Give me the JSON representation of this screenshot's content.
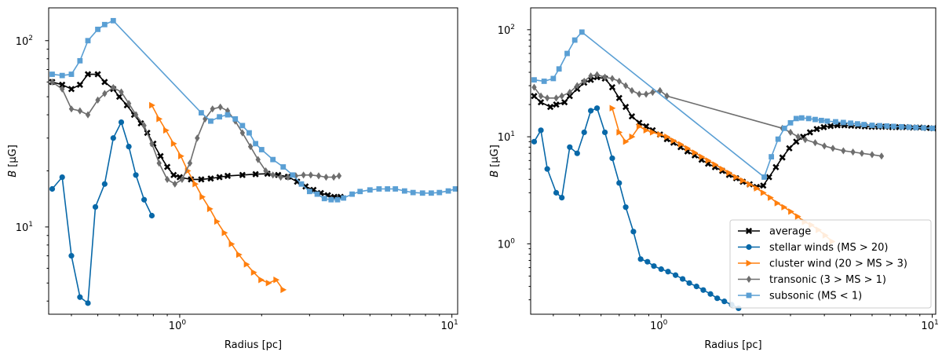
{
  "colors": {
    "average": "#000000",
    "stellar": "#0868a8",
    "cluster": "#ff7f0e",
    "transonic": "#6e6e6e",
    "subsonic": "#5a9fd4"
  },
  "chart_data": [
    {
      "type": "line",
      "xscale": "log",
      "yscale": "log",
      "xlabel": "Radius [pc]",
      "ylabel": "B [μG]",
      "xlim": [
        0.33,
        10.5
      ],
      "ylim": [
        3.4,
        150
      ],
      "xticks": [
        {
          "value": 1,
          "base": "10",
          "exp": "0"
        },
        {
          "value": 10,
          "base": "10",
          "exp": "1"
        }
      ],
      "yticks": [
        {
          "value": 10,
          "base": "10",
          "exp": "1"
        },
        {
          "value": 100,
          "base": "10",
          "exp": "2"
        }
      ],
      "series": [
        {
          "key": "average",
          "name": "average",
          "marker": "x",
          "x": [
            0.34,
            0.37,
            0.4,
            0.43,
            0.46,
            0.5,
            0.53,
            0.57,
            0.6,
            0.64,
            0.68,
            0.72,
            0.76,
            0.8,
            0.85,
            0.9,
            0.95,
            1.0,
            1.1,
            1.2,
            1.3,
            1.4,
            1.5,
            1.7,
            1.9,
            2.1,
            2.3,
            2.5,
            2.7,
            2.9,
            3.1,
            3.3,
            3.5,
            3.7,
            3.9
          ],
          "y": [
            60,
            58,
            55,
            58,
            66,
            66,
            60,
            55,
            50,
            45,
            40,
            36,
            32,
            28,
            24,
            21,
            19,
            18.5,
            18,
            18,
            18.2,
            18.5,
            18.8,
            19,
            19.2,
            19.3,
            19,
            18.6,
            17.5,
            16.5,
            15.8,
            15.2,
            14.8,
            14.5,
            14.5
          ]
        },
        {
          "key": "stellar",
          "name": "stellar winds (MS > 20)",
          "marker": "o",
          "x": [
            0.34,
            0.37,
            0.4,
            0.43,
            0.46,
            0.49,
            0.53,
            0.57,
            0.61,
            0.65,
            0.69,
            0.74,
            0.79
          ],
          "y": [
            16,
            18.5,
            7,
            4.2,
            3.9,
            12.8,
            17,
            30,
            36.5,
            27,
            19,
            14,
            11.5
          ]
        },
        {
          "key": "cluster",
          "name": "cluster wind (20 > MS > 3)",
          "marker": ">",
          "x": [
            0.79,
            0.84,
            0.89,
            0.95,
            1.01,
            1.07,
            1.14,
            1.21,
            1.29,
            1.37,
            1.46,
            1.55,
            1.65,
            1.76,
            1.87,
            1.99,
            2.12,
            2.26,
            2.4
          ],
          "y": [
            45,
            38,
            33,
            28,
            24,
            20,
            17,
            14.5,
            12.5,
            10.7,
            9.3,
            8.1,
            7.1,
            6.3,
            5.7,
            5.2,
            5.0,
            5.2,
            4.6
          ]
        },
        {
          "key": "transonic",
          "name": "transonic (3 > MS > 1)",
          "marker": "d",
          "x": [
            0.34,
            0.37,
            0.4,
            0.43,
            0.46,
            0.5,
            0.53,
            0.57,
            0.61,
            0.65,
            0.69,
            0.74,
            0.79,
            0.84,
            0.9,
            0.96,
            1.02,
            1.09,
            1.16,
            1.24,
            1.32,
            1.41,
            1.5,
            1.6,
            1.7,
            1.82,
            1.94,
            2.07,
            2.2,
            2.35,
            2.5,
            2.67,
            2.85,
            3.03,
            3.24,
            3.45,
            3.68,
            3.85
          ],
          "y": [
            60,
            55,
            43,
            42,
            40,
            48,
            52,
            56,
            53,
            46,
            40,
            35,
            28,
            22,
            18,
            17,
            18,
            22,
            30,
            38,
            43,
            44,
            42,
            37,
            32,
            27,
            23,
            20,
            19,
            18.5,
            18.5,
            18.8,
            19,
            19,
            18.8,
            18.5,
            18.5,
            18.8
          ]
        },
        {
          "key": "subsonic",
          "name": "subsonic (MS < 1)",
          "marker": "s",
          "x": [
            0.34,
            0.37,
            0.4,
            0.43,
            0.46,
            0.5,
            0.53,
            0.57,
            1.2,
            1.3,
            1.4,
            1.5,
            1.6,
            1.7,
            1.8,
            1.9,
            2.0,
            2.2,
            2.4,
            2.6,
            2.8,
            3.0,
            3.2,
            3.4,
            3.6,
            3.8,
            4.0,
            4.3,
            4.6,
            5.0,
            5.4,
            5.8,
            6.2,
            6.7,
            7.2,
            7.8,
            8.4,
            9.0,
            9.7,
            10.3
          ],
          "y": [
            66,
            65,
            66,
            78,
            100,
            115,
            122,
            128,
            41,
            37,
            39,
            40,
            38,
            35,
            32,
            28,
            26,
            23,
            21,
            19,
            17,
            15.5,
            15,
            14.2,
            14,
            14,
            14.3,
            15,
            15.5,
            15.8,
            16,
            16,
            16,
            15.6,
            15.3,
            15.2,
            15.2,
            15.3,
            15.6,
            16
          ]
        }
      ]
    },
    {
      "type": "line",
      "xscale": "log",
      "yscale": "log",
      "xlabel": "Radius [pc]",
      "ylabel": "B [μG]",
      "xlim": [
        0.33,
        10.3
      ],
      "ylim": [
        0.22,
        160
      ],
      "xticks": [
        {
          "value": 1,
          "base": "10",
          "exp": "0"
        },
        {
          "value": 10,
          "base": "10",
          "exp": "1"
        }
      ],
      "yticks": [
        {
          "value": 1,
          "base": "10",
          "exp": "0"
        },
        {
          "value": 10,
          "base": "10",
          "exp": "1"
        },
        {
          "value": 100,
          "base": "10",
          "exp": "2"
        }
      ],
      "legend": "lower-right",
      "series": [
        {
          "key": "average",
          "name": "average",
          "marker": "x",
          "x": [
            0.34,
            0.36,
            0.39,
            0.41,
            0.44,
            0.46,
            0.49,
            0.52,
            0.55,
            0.58,
            0.62,
            0.66,
            0.7,
            0.74,
            0.78,
            0.83,
            0.88,
            0.93,
            0.99,
            1.05,
            1.11,
            1.18,
            1.25,
            1.33,
            1.41,
            1.49,
            1.58,
            1.68,
            1.78,
            1.89,
            2.0,
            2.12,
            2.25,
            2.38,
            2.5,
            2.65,
            2.8,
            2.97,
            3.15,
            3.34,
            3.54,
            3.75,
            3.98,
            4.22,
            4.47,
            4.74,
            5.02,
            5.32,
            5.64,
            5.98,
            6.34,
            6.72,
            7.12,
            7.55,
            8.0,
            8.48,
            8.99,
            9.53,
            10.1
          ],
          "y": [
            24,
            21,
            19,
            20,
            21,
            24,
            28,
            32,
            34,
            36,
            35,
            29,
            23,
            19,
            15.5,
            13.5,
            12.5,
            11.5,
            10.5,
            9.5,
            8.8,
            8,
            7.3,
            6.7,
            6.1,
            5.6,
            5.2,
            4.8,
            4.4,
            4.1,
            3.8,
            3.6,
            3.4,
            3.5,
            4.2,
            5.2,
            6.4,
            7.8,
            9.0,
            10,
            11,
            11.8,
            12.3,
            12.6,
            12.8,
            12.8,
            12.7,
            12.6,
            12.5,
            12.4,
            12.4,
            12.4,
            12.3,
            12.3,
            12.3,
            12.2,
            12.2,
            12.1,
            12
          ]
        },
        {
          "key": "stellar",
          "name": "stellar winds (MS > 20)",
          "marker": "o",
          "x": [
            0.34,
            0.36,
            0.38,
            0.41,
            0.43,
            0.46,
            0.49,
            0.52,
            0.55,
            0.58,
            0.62,
            0.66,
            0.7,
            0.74,
            0.79,
            0.84,
            0.89,
            0.94,
            1.0,
            1.06,
            1.13,
            1.2,
            1.27,
            1.35,
            1.43,
            1.52,
            1.61,
            1.71,
            1.82,
            1.93
          ],
          "y": [
            9,
            11.5,
            5,
            3,
            2.7,
            8,
            7,
            11,
            17.5,
            18.5,
            11,
            6.3,
            3.7,
            2.2,
            1.3,
            0.72,
            0.68,
            0.62,
            0.58,
            0.55,
            0.51,
            0.47,
            0.43,
            0.4,
            0.37,
            0.34,
            0.31,
            0.29,
            0.27,
            0.25
          ]
        },
        {
          "key": "cluster",
          "name": "cluster wind (20 > MS > 3)",
          "marker": ">",
          "x": [
            0.66,
            0.7,
            0.74,
            0.78,
            0.83,
            0.88,
            0.93,
            0.99,
            1.05,
            1.11,
            1.18,
            1.25,
            1.33,
            1.41,
            1.49,
            1.58,
            1.68,
            1.78,
            1.89,
            2.0,
            2.12,
            2.25,
            2.38,
            2.53,
            2.68,
            2.84,
            3.01,
            3.19,
            3.38,
            3.58,
            3.8,
            4.03,
            4.27
          ],
          "y": [
            18.5,
            11,
            9,
            10,
            12.5,
            11.5,
            11,
            10.5,
            10,
            9.2,
            8.5,
            7.8,
            7.1,
            6.5,
            6.0,
            5.5,
            5.0,
            4.6,
            4.2,
            3.9,
            3.6,
            3.3,
            3.0,
            2.7,
            2.4,
            2.2,
            2.0,
            1.8,
            1.6,
            1.5,
            1.35,
            1.2,
            1.05
          ]
        },
        {
          "key": "transonic",
          "name": "transonic (3 > MS > 1)",
          "marker": "d",
          "x": [
            0.34,
            0.36,
            0.38,
            0.41,
            0.43,
            0.46,
            0.49,
            0.52,
            0.55,
            0.58,
            0.62,
            0.66,
            0.7,
            0.74,
            0.78,
            0.83,
            0.88,
            0.93,
            0.99,
            1.05,
            2.8,
            3.0,
            3.2,
            3.4,
            3.7,
            4.0,
            4.3,
            4.7,
            5.1,
            5.5,
            6.0,
            6.5
          ],
          "y": [
            29,
            24,
            23,
            23,
            24,
            26,
            30,
            33,
            37,
            38,
            36,
            35,
            33,
            30,
            27,
            25,
            25,
            26,
            27,
            24,
            12,
            11,
            10,
            9.4,
            8.8,
            8.2,
            7.8,
            7.4,
            7.2,
            7,
            6.8,
            6.6
          ]
        },
        {
          "key": "subsonic",
          "name": "subsonic (MS < 1)",
          "marker": "s",
          "x": [
            0.34,
            0.37,
            0.4,
            0.42,
            0.45,
            0.48,
            0.51,
            2.4,
            2.55,
            2.7,
            2.85,
            3.0,
            3.15,
            3.3,
            3.5,
            3.7,
            3.9,
            4.1,
            4.4,
            4.7,
            5.0,
            5.3,
            5.6,
            6.0,
            6.4,
            6.8,
            7.2,
            7.7,
            8.2,
            8.7,
            9.3,
            10.0
          ],
          "y": [
            34,
            33,
            35,
            43,
            60,
            80,
            95,
            4.2,
            6.5,
            9.5,
            12,
            13.5,
            14.8,
            15,
            14.8,
            14.5,
            14.2,
            14,
            13.8,
            13.6,
            13.4,
            13.2,
            13,
            12.8,
            12.7,
            12.6,
            12.5,
            12.4,
            12.3,
            12.2,
            12.1,
            12
          ]
        }
      ]
    }
  ]
}
